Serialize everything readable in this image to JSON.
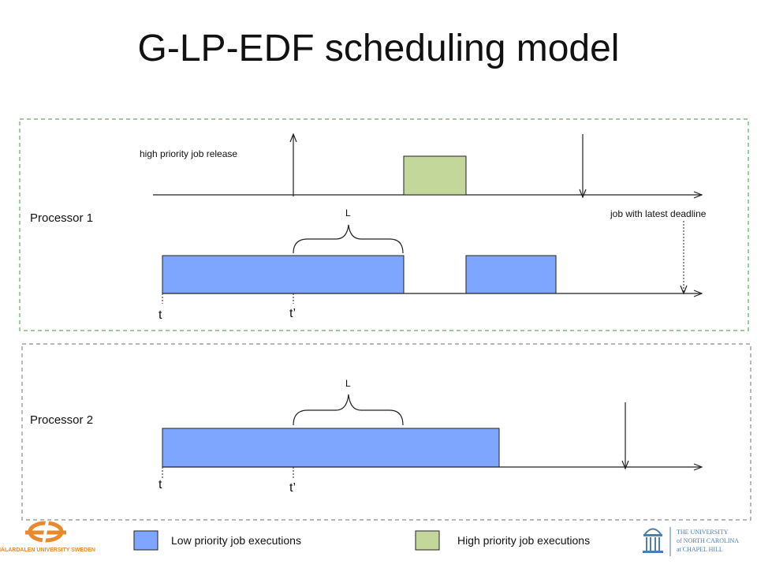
{
  "title": "G-LP-EDF scheduling model",
  "processor1": {
    "label": "Processor 1",
    "release_label": "high priority job release",
    "deadline_label": "job with latest deadline",
    "interval_label": "L",
    "t_label": "t",
    "t_prime_label": "t’"
  },
  "processor2": {
    "label": "Processor 2",
    "interval_label": "L",
    "t_label": "t",
    "t_prime_label": "t’"
  },
  "legend": {
    "low_label": "Low priority job executions",
    "high_label": "High priority job executions"
  },
  "logos": {
    "left": "MÄLARDALEN UNIVERSITY SWEDEN",
    "right_line1": "THE UNIVERSITY",
    "right_line2": "of NORTH CAROLINA",
    "right_line3": "at CHAPEL HILL"
  },
  "colors": {
    "low_priority": "#7FA6FF",
    "high_priority": "#C4D79B",
    "proc1_border": "#5FAF5F",
    "proc2_border": "#8C8C8C",
    "logo_orange": "#E8892E",
    "logo_blue": "#4B7FB5"
  }
}
